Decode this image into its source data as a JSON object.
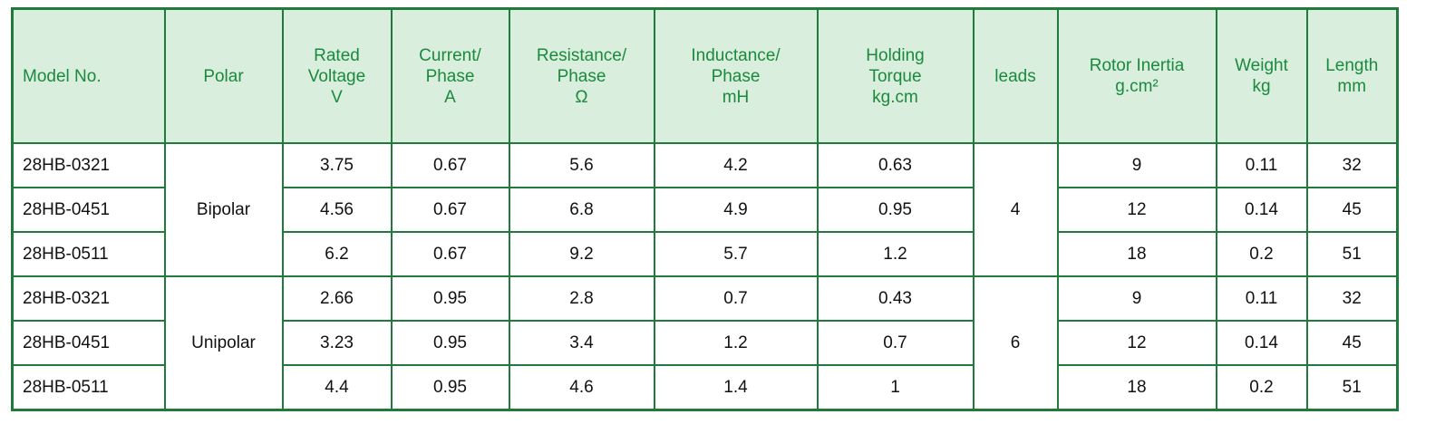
{
  "table": {
    "header": [
      [
        "Model No."
      ],
      [
        "Polar"
      ],
      [
        "Rated",
        "Voltage",
        "V"
      ],
      [
        "Current/",
        "Phase",
        "A"
      ],
      [
        "Resistance/",
        "Phase",
        "Ω"
      ],
      [
        "Inductance/",
        "Phase",
        "mH"
      ],
      [
        "Holding",
        "Torque",
        "kg.cm"
      ],
      [
        "leads"
      ],
      [
        "Rotor Inertia",
        "g.cm²"
      ],
      [
        "Weight",
        "kg"
      ],
      [
        "Length",
        "mm"
      ]
    ],
    "groups": [
      {
        "polar": "Bipolar",
        "leads": "4",
        "rows": [
          [
            "28HB-0321",
            "3.75",
            "0.67",
            "5.6",
            "4.2",
            "0.63",
            "9",
            "0.11",
            "32"
          ],
          [
            "28HB-0451",
            "4.56",
            "0.67",
            "6.8",
            "4.9",
            "0.95",
            "12",
            "0.14",
            "45"
          ],
          [
            "28HB-0511",
            "6.2",
            "0.67",
            "9.2",
            "5.7",
            "1.2",
            "18",
            "0.2",
            "51"
          ]
        ]
      },
      {
        "polar": "Unipolar",
        "leads": "6",
        "rows": [
          [
            "28HB-0321",
            "2.66",
            "0.95",
            "2.8",
            "0.7",
            "0.43",
            "9",
            "0.11",
            "32"
          ],
          [
            "28HB-0451",
            "3.23",
            "0.95",
            "3.4",
            "1.2",
            "0.7",
            "12",
            "0.14",
            "45"
          ],
          [
            "28HB-0511",
            "4.4",
            "0.95",
            "4.6",
            "1.4",
            "1",
            "18",
            "0.2",
            "51"
          ]
        ]
      }
    ]
  }
}
